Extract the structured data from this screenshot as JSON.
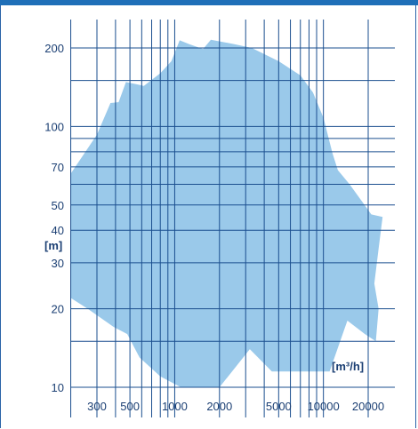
{
  "colors": {
    "accent": "#1f6fb8",
    "grid": "#1b4f8f",
    "fill": "#9ac9ea",
    "text": "#1b3f73"
  },
  "chart_data": {
    "type": "area",
    "title": "",
    "xlabel": "[m³/h]",
    "ylabel": "[m]",
    "x_scale": "log",
    "y_scale": "log",
    "xlim": [
      190,
      30000
    ],
    "ylim": [
      10,
      260
    ],
    "grid": true,
    "x_gridlines": [
      200,
      300,
      400,
      500,
      600,
      700,
      800,
      900,
      1000,
      2000,
      3000,
      4000,
      5000,
      6000,
      7000,
      8000,
      9000,
      10000,
      20000
    ],
    "y_gridlines": [
      10,
      15,
      20,
      30,
      40,
      50,
      60,
      70,
      80,
      90,
      100,
      150,
      200
    ],
    "x_ticks": [
      {
        "value": 300,
        "label": "300"
      },
      {
        "value": 500,
        "label": "500"
      },
      {
        "value": 1000,
        "label": "1000"
      },
      {
        "value": 2000,
        "label": "2000"
      },
      {
        "value": 5000,
        "label": "5000"
      },
      {
        "value": 10000,
        "label": "10000"
      },
      {
        "value": 20000,
        "label": "20000"
      }
    ],
    "y_ticks": [
      {
        "value": 200,
        "label": "200"
      },
      {
        "value": 100,
        "label": "100"
      },
      {
        "value": 70,
        "label": "70"
      },
      {
        "value": 50,
        "label": "50"
      },
      {
        "value": 40,
        "label": "40"
      },
      {
        "value": 30,
        "label": "30"
      },
      {
        "value": 20,
        "label": "20"
      },
      {
        "value": 10,
        "label": "10"
      }
    ],
    "region": [
      [
        200,
        66
      ],
      [
        300,
        93
      ],
      [
        370,
        123
      ],
      [
        420,
        124
      ],
      [
        470,
        148
      ],
      [
        560,
        145
      ],
      [
        620,
        143
      ],
      [
        800,
        160
      ],
      [
        950,
        178
      ],
      [
        1080,
        214
      ],
      [
        1250,
        207
      ],
      [
        1550,
        198
      ],
      [
        1750,
        215
      ],
      [
        2500,
        207
      ],
      [
        3300,
        200
      ],
      [
        5000,
        178
      ],
      [
        7000,
        157
      ],
      [
        8500,
        135
      ],
      [
        10000,
        108
      ],
      [
        11500,
        79
      ],
      [
        12500,
        68
      ],
      [
        15000,
        60
      ],
      [
        18000,
        52
      ],
      [
        21000,
        46
      ],
      [
        25000,
        45
      ],
      [
        23500,
        34
      ],
      [
        22000,
        25
      ],
      [
        23500,
        20
      ],
      [
        22500,
        15
      ],
      [
        19000,
        16
      ],
      [
        14500,
        18
      ],
      [
        11000,
        11.5
      ],
      [
        10000,
        11.5
      ],
      [
        9000,
        11.5
      ],
      [
        5500,
        11.5
      ],
      [
        4500,
        11.5
      ],
      [
        3200,
        14
      ],
      [
        2000,
        10
      ],
      [
        1100,
        10
      ],
      [
        800,
        11
      ],
      [
        580,
        13
      ],
      [
        480,
        16
      ],
      [
        390,
        17
      ],
      [
        260,
        20
      ],
      [
        200,
        22
      ]
    ]
  }
}
